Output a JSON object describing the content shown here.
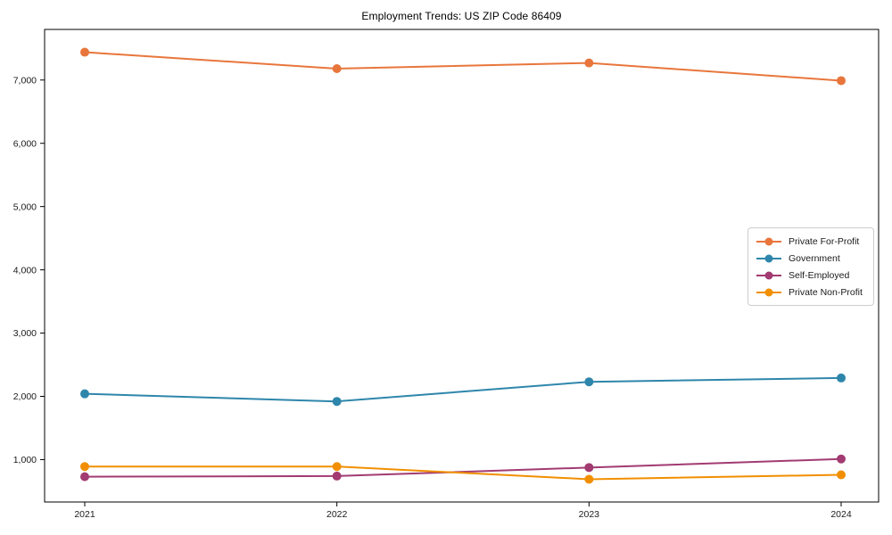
{
  "chart_data": {
    "type": "line",
    "title": "Employment Trends: US ZIP Code 86409",
    "categories": [
      "2021",
      "2022",
      "2023",
      "2024"
    ],
    "series": [
      {
        "name": "Private For-Profit",
        "color": "#E8763C",
        "values": [
          7440,
          7180,
          7270,
          6990
        ]
      },
      {
        "name": "Government",
        "color": "#2E86AB",
        "values": [
          2040,
          1920,
          2230,
          2290
        ]
      },
      {
        "name": "Self-Employed",
        "color": "#A23B72",
        "values": [
          730,
          740,
          875,
          1010
        ]
      },
      {
        "name": "Private Non-Profit",
        "color": "#F18F01",
        "values": [
          890,
          890,
          690,
          760
        ]
      }
    ],
    "xlabel": "",
    "ylabel": "",
    "ylim": [
      330,
      7800
    ],
    "yticks": [
      1000,
      2000,
      3000,
      4000,
      5000,
      6000,
      7000
    ],
    "ytick_format": "comma",
    "grid": false,
    "frame": "full-box",
    "marker": "circle",
    "legend_position": "right-middle",
    "axis_color": "#000000",
    "tick_label_color": "#1a1a1a",
    "background_color": "#ffffff"
  }
}
